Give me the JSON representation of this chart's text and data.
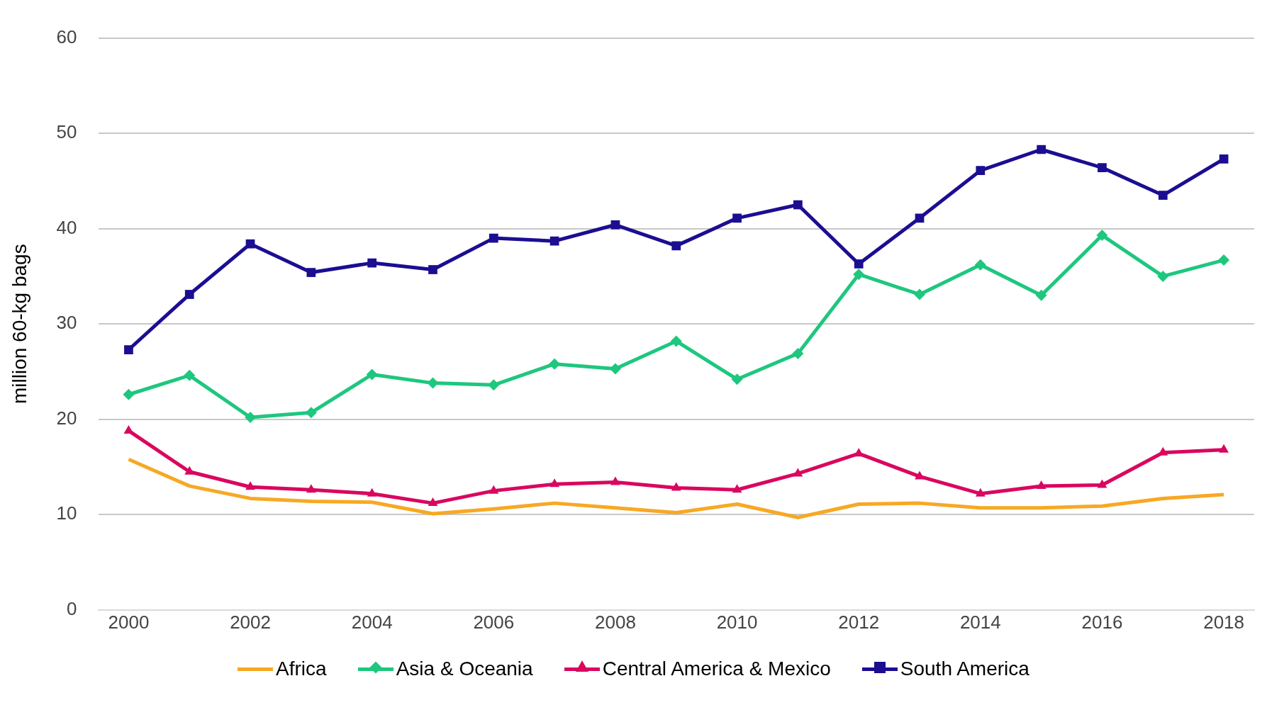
{
  "chart_data": {
    "type": "line",
    "ylabel": "million 60-kg bags",
    "x": [
      2000,
      2001,
      2002,
      2003,
      2004,
      2005,
      2006,
      2007,
      2008,
      2009,
      2010,
      2011,
      2012,
      2013,
      2014,
      2015,
      2016,
      2017,
      2018
    ],
    "xlim": [
      1999.5,
      2018.5
    ],
    "xticks": [
      2000,
      2002,
      2004,
      2006,
      2008,
      2010,
      2012,
      2014,
      2016,
      2018
    ],
    "ylim": [
      0,
      60
    ],
    "yticks": [
      0,
      10,
      20,
      30,
      40,
      50,
      60
    ],
    "grid": "y",
    "legend": "bottom",
    "line_style": "solid",
    "series": [
      {
        "name": "Africa",
        "color": "#f7a823",
        "marker": "none",
        "values": [
          15.8,
          13.0,
          11.7,
          11.4,
          11.3,
          10.1,
          10.6,
          11.2,
          10.7,
          10.2,
          11.1,
          9.7,
          11.1,
          11.2,
          10.7,
          10.7,
          10.9,
          11.7,
          12.1
        ]
      },
      {
        "name": "Asia & Oceania",
        "color": "#1ec77e",
        "marker": "diamond",
        "values": [
          22.6,
          24.6,
          20.2,
          20.7,
          24.7,
          23.8,
          23.6,
          25.8,
          25.3,
          28.2,
          24.2,
          26.9,
          35.2,
          33.1,
          36.2,
          33.0,
          39.3,
          35.0,
          36.7
        ]
      },
      {
        "name": "Central America & Mexico",
        "color": "#d9075f",
        "marker": "triangle",
        "values": [
          18.8,
          14.5,
          12.9,
          12.6,
          12.2,
          11.2,
          12.5,
          13.2,
          13.4,
          12.8,
          12.6,
          14.3,
          16.4,
          14.0,
          12.2,
          13.0,
          13.1,
          16.5,
          16.8
        ]
      },
      {
        "name": "South America",
        "color": "#1b0e91",
        "marker": "square",
        "values": [
          27.3,
          33.1,
          38.4,
          35.4,
          36.4,
          35.7,
          39.0,
          38.7,
          40.4,
          38.2,
          41.1,
          42.5,
          36.3,
          41.1,
          46.1,
          48.3,
          46.4,
          43.5,
          47.3
        ]
      }
    ]
  }
}
